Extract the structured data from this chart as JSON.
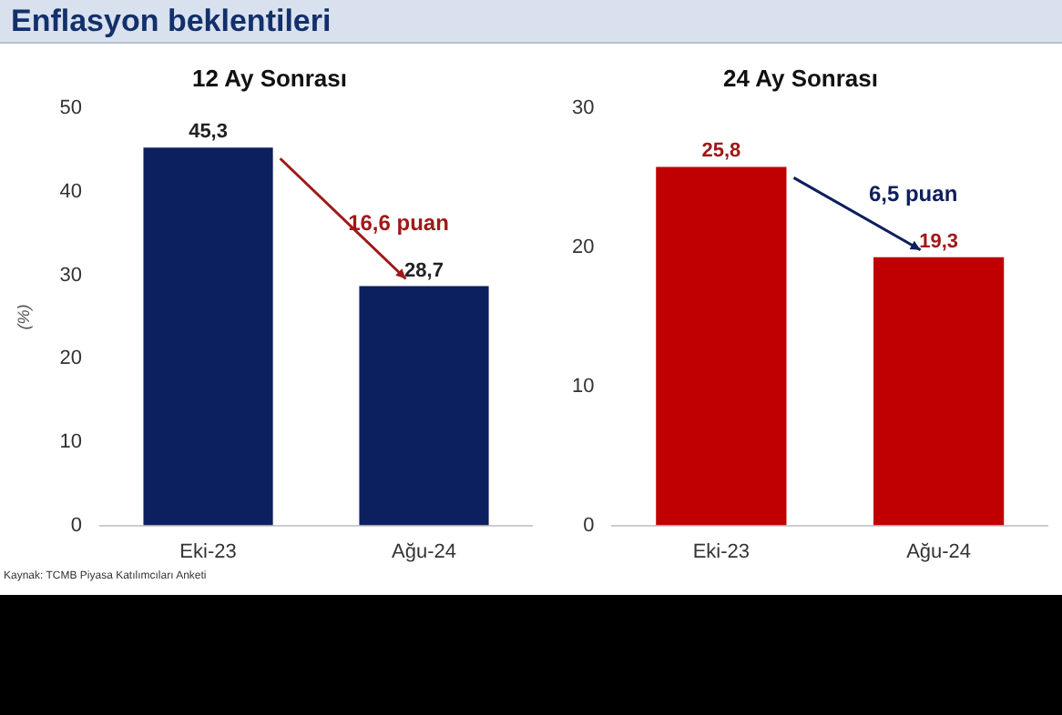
{
  "chart_data": [
    {
      "type": "bar",
      "title": "12 Ay Sonrası",
      "ylabel": "(%)",
      "categories": [
        "Eki-23",
        "Ağu-24"
      ],
      "values": [
        45.3,
        28.7
      ],
      "value_labels": [
        "45,3",
        "28,7"
      ],
      "color": "#0c1f5e",
      "ylim": [
        0,
        50
      ],
      "yticks": [
        0,
        10,
        20,
        30,
        40,
        50
      ],
      "grid": false,
      "annotations": [
        "Enflasyon beklentileri",
        {
          "text": "16,6 puan",
          "x": "Ağu-24",
          "y": 28.7
        },
        "Kaynak: TCMB Piyasa Katılımcıları Anketi"
      ]
    },
    {
      "type": "bar",
      "title": "24 Ay Sonrası",
      "categories": [
        "Eki-23",
        "Ağu-24"
      ],
      "values": [
        25.8,
        19.3
      ],
      "value_labels": [
        "25,8",
        "19,3"
      ],
      "color": "#c00000",
      "ylim": [
        0,
        30
      ],
      "yticks": [
        0,
        10,
        20,
        30
      ],
      "grid": false,
      "annotations": [
        {
          "text": "6,5 puan",
          "x": "Ağu-24",
          "y": 19.3
        }
      ]
    }
  ]
}
